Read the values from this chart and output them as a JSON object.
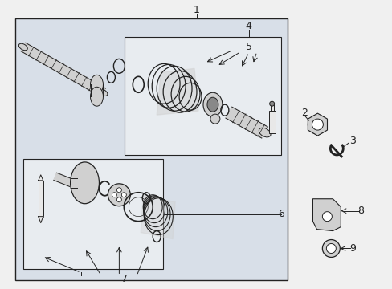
{
  "bg_color": "#f0f0f0",
  "outer_bg": "#d8dfe8",
  "inner_bg": "#e8ecf0",
  "white_bg": "#ffffff",
  "line_color": "#222222",
  "part_fill": "#d0d0d0",
  "part_dark": "#888888",
  "part_light": "#e8e8e8",
  "font_size": 8,
  "label_font_size": 9
}
